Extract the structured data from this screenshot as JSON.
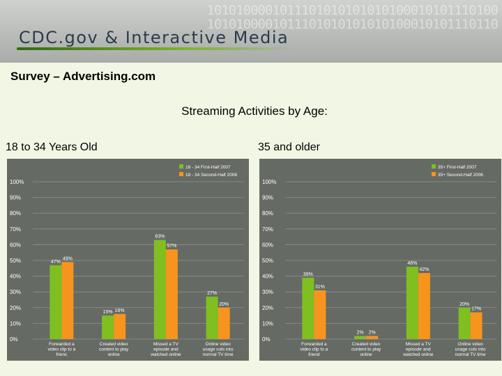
{
  "banner": {
    "title": "CDC.gov & Interactive Media",
    "binary_lines": [
      "1010100001011101010101010100010101110100",
      "1010100001011101010101010100010101110110"
    ]
  },
  "slide": {
    "subtitle": "Survey – Advertising.com",
    "heading": "Streaming Activities by Age:",
    "left_label": "18 to 34 Years Old",
    "right_label": "35 and older"
  },
  "colors": {
    "first_series": "#7fbf1f",
    "second_series": "#f7941d",
    "chart_bg": "#666a64"
  },
  "chart_data": [
    {
      "type": "bar",
      "categories": [
        "Forwarded a video clip to a frienc",
        "Created video content to play online",
        "Missed a TV episode and watched online",
        "Online video usage cuts into normal TV time"
      ],
      "series": [
        {
          "name": "18 - 34 First-Half 2007",
          "values": [
            47,
            15,
            63,
            27
          ],
          "labels": [
            "47%",
            "15%",
            "63%",
            "27%"
          ]
        },
        {
          "name": "18 - 34 Second-Half 2006",
          "values": [
            49,
            16,
            57,
            20
          ],
          "labels": [
            "49%",
            "16%",
            "57%",
            "20%"
          ]
        }
      ],
      "yticks": [
        "0%",
        "10%",
        "20%",
        "30%",
        "40%",
        "50%",
        "60%",
        "70%",
        "80%",
        "90%",
        "100%"
      ],
      "ylim": [
        0,
        100
      ],
      "grid": true,
      "legend": "top-right"
    },
    {
      "type": "bar",
      "categories": [
        "Forwarded a video clip to a friend",
        "Created video content to play online",
        "Missed a TV episode and watched online",
        "Online video usage cuts into normal TV time"
      ],
      "series": [
        {
          "name": "35+ First-Half 2007",
          "values": [
            39,
            2,
            46,
            20
          ],
          "labels": [
            "39%",
            "2%",
            "46%",
            "20%"
          ]
        },
        {
          "name": "35+ Second-Half 2006",
          "values": [
            31,
            2,
            42,
            17
          ],
          "labels": [
            "31%",
            "2%",
            "42%",
            "17%"
          ]
        }
      ],
      "yticks": [
        "0%",
        "10%",
        "20%",
        "30%",
        "40%",
        "50%",
        "60%",
        "70%",
        "80%",
        "90%",
        "100%"
      ],
      "ylim": [
        0,
        100
      ],
      "grid": true,
      "legend": "top-right"
    }
  ]
}
